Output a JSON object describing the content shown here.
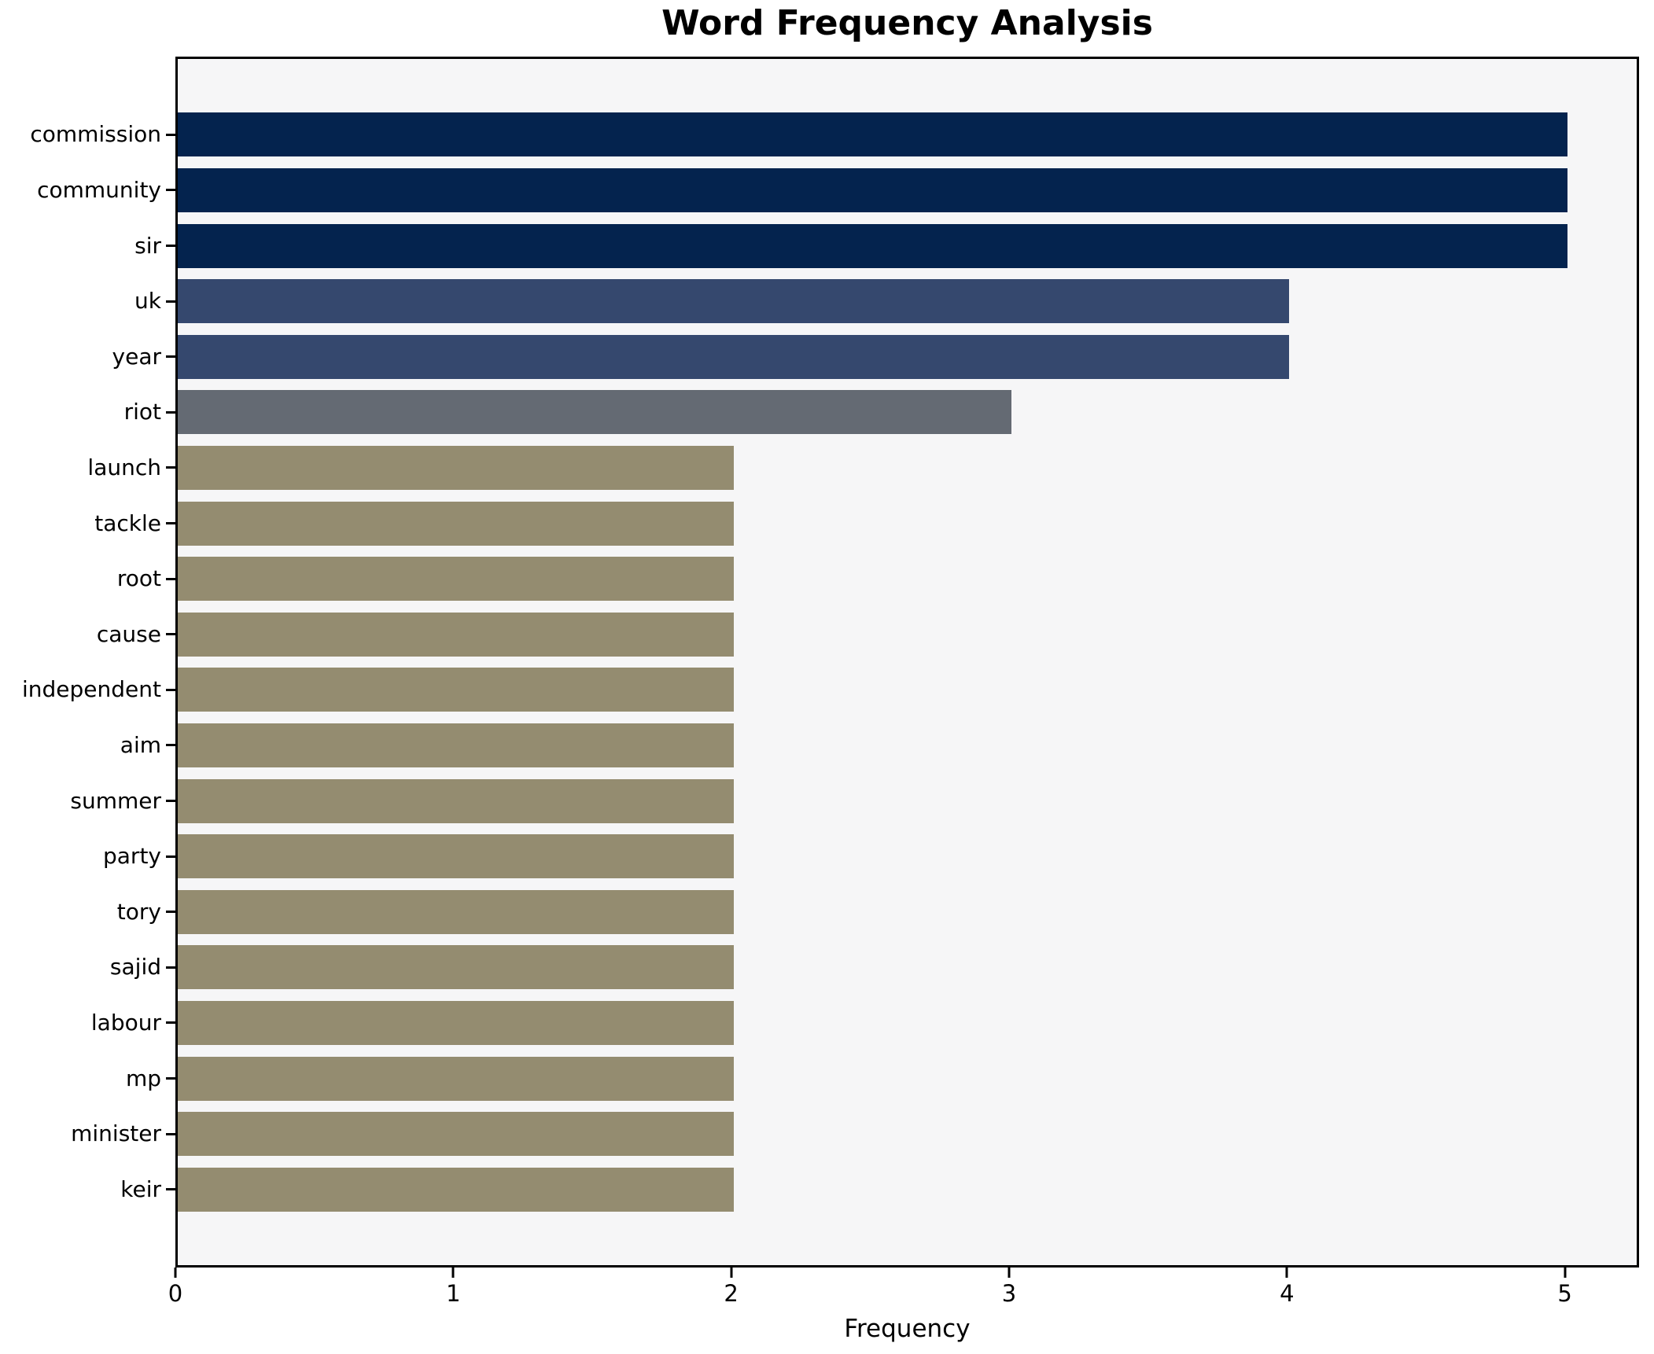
{
  "figure": {
    "background": "#ffffff",
    "plot_background": "#f6f6f7",
    "spine_color": "#000000"
  },
  "chart_data": {
    "type": "bar",
    "orientation": "horizontal",
    "title": "Word Frequency Analysis",
    "xlabel": "Frequency",
    "ylabel": "",
    "categories": [
      "commission",
      "community",
      "sir",
      "uk",
      "year",
      "riot",
      "launch",
      "tackle",
      "root",
      "cause",
      "independent",
      "aim",
      "summer",
      "party",
      "tory",
      "sajid",
      "labour",
      "mp",
      "minister",
      "keir"
    ],
    "values": [
      5,
      5,
      5,
      4,
      4,
      3,
      2,
      2,
      2,
      2,
      2,
      2,
      2,
      2,
      2,
      2,
      2,
      2,
      2,
      2
    ],
    "xlim": [
      0,
      5.25
    ],
    "xticks": [
      0,
      1,
      2,
      3,
      4,
      5
    ],
    "grid": false,
    "legend_position": "none",
    "bar_colors_by_value": {
      "5": "#04234e",
      "4": "#35486e",
      "3": "#646a73",
      "2": "#948c70"
    }
  }
}
